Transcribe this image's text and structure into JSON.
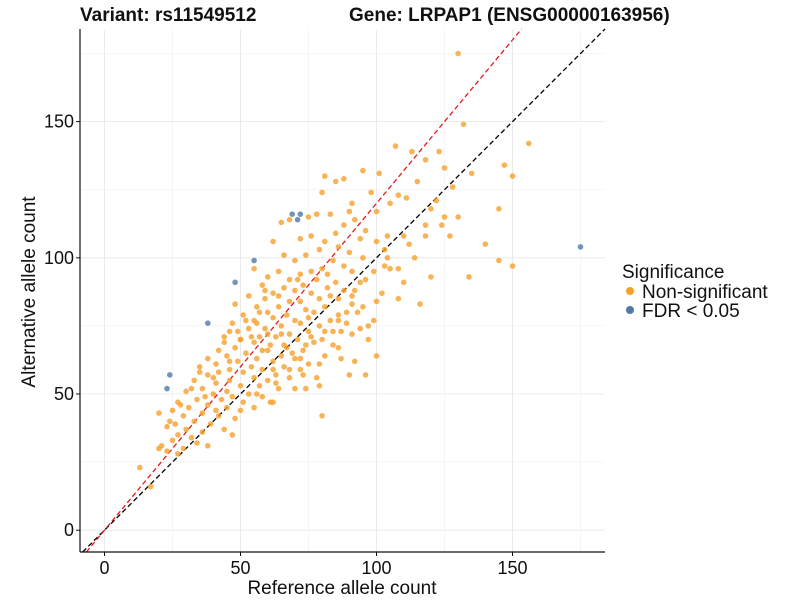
{
  "chart_data": {
    "type": "scatter",
    "title_left": "Variant: rs11549512",
    "title_right": "Gene: LRPAP1 (ENSG00000163956)",
    "xlabel": "Reference allele count",
    "ylabel": "Alternative allele count",
    "xlim": [
      -9,
      184
    ],
    "ylim": [
      -8,
      184
    ],
    "xticks": [
      0,
      50,
      100,
      150
    ],
    "yticks": [
      0,
      50,
      100,
      150
    ],
    "grid": true,
    "legend": {
      "title": "Significance",
      "placement": "right",
      "entries": [
        {
          "label": "Non-significant",
          "color": "#F5A02A"
        },
        {
          "label": "FDR < 0.05",
          "color": "#4F79A8"
        }
      ]
    },
    "reference_lines": [
      {
        "style": "dashed",
        "color": "#000000",
        "intercept": 0,
        "slope": 1
      },
      {
        "style": "dashed",
        "color": "#e41a1c",
        "intercept": 0,
        "slope": 1.2
      }
    ],
    "series": [
      {
        "name": "Non-significant",
        "color": "#F5A02A",
        "points": [
          [
            130,
            175
          ],
          [
            132,
            149
          ],
          [
            107,
            141
          ],
          [
            156,
            142
          ],
          [
            123,
            139
          ],
          [
            113,
            139
          ],
          [
            118,
            136
          ],
          [
            147,
            134
          ],
          [
            125,
            133
          ],
          [
            95,
            132
          ],
          [
            101,
            131
          ],
          [
            81,
            130
          ],
          [
            88,
            129
          ],
          [
            115,
            128
          ],
          [
            85,
            128
          ],
          [
            150,
            130
          ],
          [
            98,
            124
          ],
          [
            80,
            124
          ],
          [
            108,
            123
          ],
          [
            111,
            122
          ],
          [
            105,
            120
          ],
          [
            91,
            120
          ],
          [
            120,
            118
          ],
          [
            145,
            118
          ],
          [
            100,
            117
          ],
          [
            83,
            116
          ],
          [
            90,
            117
          ],
          [
            78,
            116
          ],
          [
            75,
            115
          ],
          [
            130,
            115
          ],
          [
            125,
            115
          ],
          [
            92,
            114
          ],
          [
            68,
            114
          ],
          [
            65,
            113
          ],
          [
            88,
            112
          ],
          [
            96,
            110
          ],
          [
            85,
            109
          ],
          [
            104,
            108
          ],
          [
            110,
            108
          ],
          [
            94,
            107
          ],
          [
            76,
            108
          ],
          [
            72,
            107
          ],
          [
            81,
            106
          ],
          [
            100,
            106
          ],
          [
            62,
            106
          ],
          [
            86,
            104
          ],
          [
            79,
            103
          ],
          [
            103,
            103
          ],
          [
            90,
            102
          ],
          [
            66,
            101
          ],
          [
            74,
            101
          ],
          [
            95,
            100
          ],
          [
            84,
            99
          ],
          [
            70,
            99
          ],
          [
            145,
            99
          ],
          [
            55,
            96
          ],
          [
            88,
            97
          ],
          [
            80,
            96
          ],
          [
            76,
            95
          ],
          [
            91,
            95
          ],
          [
            64,
            95
          ],
          [
            72,
            94
          ],
          [
            99,
            95
          ],
          [
            105,
            96
          ],
          [
            82,
            94
          ],
          [
            60,
            93
          ],
          [
            68,
            92
          ],
          [
            78,
            92
          ],
          [
            85,
            91
          ],
          [
            73,
            90
          ],
          [
            94,
            91
          ],
          [
            110,
            91
          ],
          [
            58,
            90
          ],
          [
            66,
            89
          ],
          [
            82,
            89
          ],
          [
            88,
            88
          ],
          [
            70,
            88
          ],
          [
            62,
            87
          ],
          [
            76,
            87
          ],
          [
            102,
            87
          ],
          [
            53,
            86
          ],
          [
            59,
            85
          ],
          [
            79,
            85
          ],
          [
            86,
            85
          ],
          [
            68,
            84
          ],
          [
            72,
            84
          ],
          [
            91,
            83
          ],
          [
            56,
            82
          ],
          [
            64,
            82
          ],
          [
            81,
            82
          ],
          [
            95,
            82
          ],
          [
            74,
            81
          ],
          [
            60,
            80
          ],
          [
            77,
            80
          ],
          [
            86,
            79
          ],
          [
            67,
            79
          ],
          [
            51,
            79
          ],
          [
            62,
            78
          ],
          [
            83,
            77
          ],
          [
            99,
            77
          ],
          [
            70,
            77
          ],
          [
            47,
            76
          ],
          [
            56,
            76
          ],
          [
            72,
            76
          ],
          [
            89,
            76
          ],
          [
            65,
            75
          ],
          [
            79,
            75
          ],
          [
            53,
            74
          ],
          [
            59,
            74
          ],
          [
            75,
            73
          ],
          [
            84,
            73
          ],
          [
            46,
            73
          ],
          [
            68,
            72
          ],
          [
            91,
            72
          ],
          [
            57,
            71
          ],
          [
            63,
            71
          ],
          [
            80,
            70
          ],
          [
            50,
            70
          ],
          [
            71,
            70
          ],
          [
            44,
            69
          ],
          [
            55,
            69
          ],
          [
            77,
            69
          ],
          [
            61,
            68
          ],
          [
            67,
            67
          ],
          [
            86,
            67
          ],
          [
            48,
            67
          ],
          [
            42,
            66
          ],
          [
            58,
            66
          ],
          [
            73,
            66
          ],
          [
            52,
            65
          ],
          [
            65,
            64
          ],
          [
            81,
            64
          ],
          [
            45,
            64
          ],
          [
            38,
            63
          ],
          [
            56,
            63
          ],
          [
            70,
            63
          ],
          [
            62,
            62
          ],
          [
            49,
            62
          ],
          [
            41,
            61
          ],
          [
            75,
            61
          ],
          [
            66,
            60
          ],
          [
            54,
            60
          ],
          [
            35,
            60
          ],
          [
            46,
            59
          ],
          [
            58,
            59
          ],
          [
            72,
            59
          ],
          [
            42,
            58
          ],
          [
            51,
            58
          ],
          [
            63,
            57
          ],
          [
            38,
            57
          ],
          [
            55,
            56
          ],
          [
            68,
            56
          ],
          [
            46,
            55
          ],
          [
            33,
            55
          ],
          [
            60,
            55
          ],
          [
            78,
            56
          ],
          [
            41,
            54
          ],
          [
            50,
            53
          ],
          [
            57,
            53
          ],
          [
            36,
            52
          ],
          [
            45,
            51
          ],
          [
            64,
            52
          ],
          [
            30,
            51
          ],
          [
            53,
            50
          ],
          [
            40,
            50
          ],
          [
            47,
            49
          ],
          [
            58,
            49
          ],
          [
            34,
            48
          ],
          [
            43,
            48
          ],
          [
            27,
            47
          ],
          [
            51,
            47
          ],
          [
            62,
            47
          ],
          [
            38,
            46
          ],
          [
            31,
            45
          ],
          [
            45,
            45
          ],
          [
            25,
            44
          ],
          [
            55,
            45
          ],
          [
            36,
            43
          ],
          [
            42,
            42
          ],
          [
            20,
            43
          ],
          [
            29,
            42
          ],
          [
            48,
            41
          ],
          [
            33,
            40
          ],
          [
            26,
            39
          ],
          [
            39,
            39
          ],
          [
            23,
            38
          ],
          [
            44,
            37
          ],
          [
            30,
            37
          ],
          [
            36,
            36
          ],
          [
            27,
            35
          ],
          [
            47,
            35
          ],
          [
            32,
            34
          ],
          [
            25,
            33
          ],
          [
            21,
            31
          ],
          [
            34,
            32
          ],
          [
            29,
            30
          ],
          [
            23,
            29
          ],
          [
            20,
            30
          ],
          [
            38,
            31
          ],
          [
            27,
            28
          ],
          [
            13,
            23
          ],
          [
            17,
            16
          ],
          [
            50,
            70
          ],
          [
            60,
            72
          ],
          [
            87,
            73
          ],
          [
            92,
            62
          ],
          [
            96,
            57
          ],
          [
            100,
            64
          ],
          [
            90,
            57
          ],
          [
            73,
            57
          ],
          [
            79,
            53
          ],
          [
            74,
            52
          ],
          [
            120,
            93
          ],
          [
            134,
            93
          ],
          [
            150,
            97
          ],
          [
            140,
            105
          ],
          [
            116,
            83
          ],
          [
            108,
            85
          ],
          [
            97,
            75
          ],
          [
            84,
            68
          ],
          [
            68,
            59
          ],
          [
            61,
            47
          ],
          [
            80,
            42
          ],
          [
            63,
            54
          ],
          [
            70,
            52
          ],
          [
            104,
            100
          ],
          [
            112,
            105
          ],
          [
            118,
            108
          ],
          [
            127,
            108
          ],
          [
            124,
            112
          ],
          [
            96,
            92
          ],
          [
            92,
            88
          ],
          [
            100,
            84
          ],
          [
            89,
            80
          ],
          [
            93,
            80
          ],
          [
            75,
            78
          ],
          [
            83,
            86
          ],
          [
            94,
            74
          ],
          [
            97,
            70
          ],
          [
            87,
            63
          ],
          [
            79,
            61
          ],
          [
            72,
            63
          ],
          [
            66,
            68
          ],
          [
            76,
            71
          ],
          [
            65,
            72
          ],
          [
            54,
            71
          ],
          [
            55,
            77
          ],
          [
            49,
            73
          ],
          [
            57,
            80
          ],
          [
            64,
            86
          ],
          [
            71,
            92
          ],
          [
            59,
            88
          ],
          [
            48,
            83
          ],
          [
            44,
            71
          ],
          [
            52,
            77
          ],
          [
            60,
            66
          ],
          [
            46,
            62
          ],
          [
            40,
            56
          ],
          [
            35,
            58
          ],
          [
            32,
            52
          ],
          [
            37,
            49
          ],
          [
            28,
            46
          ],
          [
            24,
            40
          ],
          [
            41,
            44
          ],
          [
            50,
            44
          ],
          [
            56,
            50
          ],
          [
            62,
            59
          ],
          [
            69,
            65
          ],
          [
            74,
            68
          ],
          [
            81,
            73
          ],
          [
            86,
            77
          ],
          [
            91,
            86
          ],
          [
            103,
            97
          ],
          [
            108,
            96
          ],
          [
            114,
            100
          ],
          [
            118,
            112
          ],
          [
            122,
            121
          ],
          [
            128,
            126
          ],
          [
            135,
            131
          ]
        ]
      },
      {
        "name": "FDR < 0.05",
        "color": "#4F79A8",
        "points": [
          [
            69,
            116
          ],
          [
            72,
            116
          ],
          [
            71,
            114
          ],
          [
            55,
            99
          ],
          [
            48,
            91
          ],
          [
            38,
            76
          ],
          [
            24,
            57
          ],
          [
            23,
            52
          ],
          [
            175,
            104
          ]
        ]
      }
    ]
  }
}
